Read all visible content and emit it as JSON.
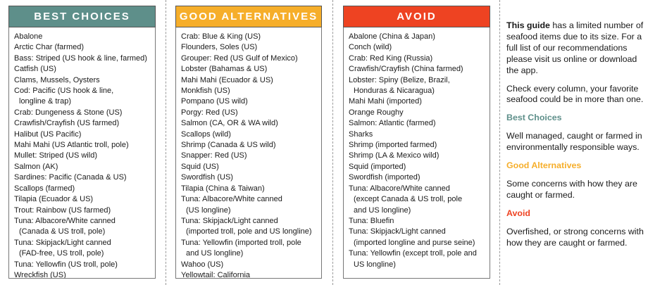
{
  "columns": {
    "best": {
      "title": "BEST CHOICES",
      "items": [
        [
          "Abalone"
        ],
        [
          "Arctic Char (farmed)"
        ],
        [
          "Bass: Striped (US hook & line, farmed)"
        ],
        [
          "Catfish (US)"
        ],
        [
          "Clams, Mussels, Oysters"
        ],
        [
          "Cod: Pacific (US hook & line,",
          "longline & trap)"
        ],
        [
          "Crab: Dungeness & Stone (US)"
        ],
        [
          "Crawfish/Crayfish (US farmed)"
        ],
        [
          "Halibut (US Pacific)"
        ],
        [
          "Mahi Mahi (US Atlantic troll, pole)"
        ],
        [
          "Mullet: Striped (US wild)"
        ],
        [
          "Salmon (AK)"
        ],
        [
          "Sardines: Pacific (Canada & US)"
        ],
        [
          "Scallops (farmed)"
        ],
        [
          "Tilapia (Ecuador & US)"
        ],
        [
          "Trout: Rainbow (US farmed)"
        ],
        [
          "Tuna: Albacore/White canned",
          "(Canada & US troll, pole)"
        ],
        [
          "Tuna: Skipjack/Light canned",
          "(FAD-free, US troll, pole)"
        ],
        [
          "Tuna: Yellowfin (US troll, pole)"
        ],
        [
          "Wreckfish (US)"
        ]
      ]
    },
    "good": {
      "title": "GOOD ALTERNATIVES",
      "items": [
        [
          "Crab: Blue & King (US)"
        ],
        [
          "Flounders, Soles (US)"
        ],
        [
          "Grouper: Red (US Gulf of Mexico)"
        ],
        [
          "Lobster (Bahamas & US)"
        ],
        [
          "Mahi Mahi (Ecuador & US)"
        ],
        [
          "Monkfish (US)"
        ],
        [
          "Pompano (US wild)"
        ],
        [
          "Porgy: Red (US)"
        ],
        [
          "Salmon (CA, OR & WA wild)"
        ],
        [
          "Scallops (wild)"
        ],
        [
          "Shrimp (Canada & US wild)"
        ],
        [
          "Snapper: Red (US)"
        ],
        [
          "Squid (US)"
        ],
        [
          "Swordfish (US)"
        ],
        [
          "Tilapia (China & Taiwan)"
        ],
        [
          "Tuna: Albacore/White canned",
          "(US longline)"
        ],
        [
          "Tuna: Skipjack/Light canned",
          "(imported troll, pole and US longline)"
        ],
        [
          "Tuna: Yellowfin (imported troll, pole",
          "and US longline)"
        ],
        [
          "Wahoo (US)"
        ],
        [
          "Yellowtail: California"
        ]
      ]
    },
    "avoid": {
      "title": "AVOID",
      "items": [
        [
          "Abalone (China & Japan)"
        ],
        [
          "Conch (wild)"
        ],
        [
          "Crab: Red King (Russia)"
        ],
        [
          "Crawfish/Crayfish (China farmed)"
        ],
        [
          "Lobster: Spiny (Belize, Brazil,",
          "Honduras & Nicaragua)"
        ],
        [
          "Mahi Mahi (imported)"
        ],
        [
          "Orange Roughy"
        ],
        [
          "Salmon: Atlantic (farmed)"
        ],
        [
          "Sharks"
        ],
        [
          "Shrimp (imported farmed)"
        ],
        [
          "Shrimp (LA & Mexico wild)"
        ],
        [
          "Squid (imported)"
        ],
        [
          "Swordfish (imported)"
        ],
        [
          "Tuna: Albacore/White canned",
          "(except Canada & US troll, pole",
          "and US longline)"
        ],
        [
          "Tuna: Bluefin"
        ],
        [
          "Tuna: Skipjack/Light canned",
          "(imported longline and purse seine)"
        ],
        [
          "Tuna: Yellowfin (except troll, pole and",
          "US longline)"
        ]
      ]
    }
  },
  "sidebar": {
    "intro_bold": "This guide",
    "intro_rest": " has a limited number of seafood items due to its size. For a full list of our recommen­dations please visit us online or download the app.",
    "check": "Check every column, your favorite seafood could be in more than one.",
    "legend": {
      "best_title": "Best Choices",
      "best_desc": "Well managed, caught or farmed in environmentally responsible ways.",
      "good_title": "Good Alternatives",
      "good_desc": "Some concerns with how they are caught or farmed.",
      "avoid_title": "Avoid",
      "avoid_desc": "Overfished, or strong concerns with how they are caught or farmed."
    }
  },
  "colors": {
    "best": "#5e8f8a",
    "good": "#f6ae2a",
    "avoid": "#ee4322"
  }
}
